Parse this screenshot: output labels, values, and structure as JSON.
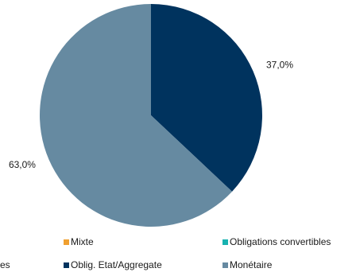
{
  "chart_data": {
    "type": "pie",
    "slices": [
      {
        "name": "Oblig. Etat/Aggregate",
        "value": 37.0,
        "label": "37,0%",
        "color": "#00335e"
      },
      {
        "name": "Monétaire",
        "value": 63.0,
        "label": "63,0%",
        "color": "#668aa1"
      }
    ],
    "legend": [
      {
        "label": "Mixte",
        "color": "#f0a030"
      },
      {
        "label": "Obligations convertibles",
        "color": "#17b2b0"
      },
      {
        "label": "es",
        "color": null
      },
      {
        "label": "Oblig. Etat/Aggregate",
        "color": "#00335e"
      },
      {
        "label": "Monétaire",
        "color": "#668aa1"
      }
    ],
    "legend_position": "bottom"
  }
}
